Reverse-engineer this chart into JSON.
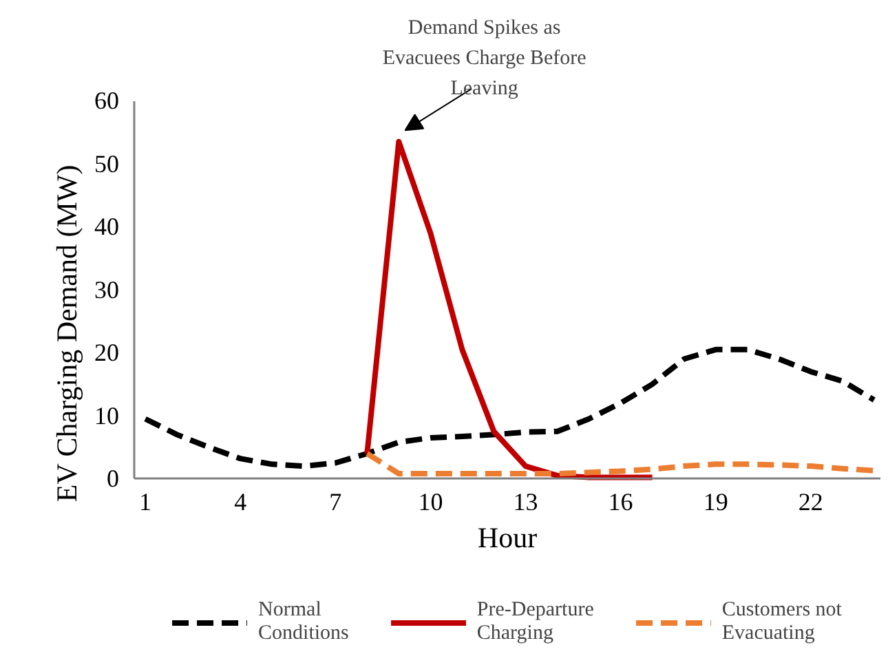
{
  "chart_data": {
    "type": "line",
    "xlabel": "Hour",
    "ylabel": "EV Charging Demand (MW)",
    "xlim": [
      0.65,
      24.2
    ],
    "xticks": [
      1,
      4,
      7,
      10,
      13,
      16,
      19,
      22
    ],
    "ylim": [
      0,
      60
    ],
    "yticks": [
      0,
      10,
      20,
      30,
      40,
      50,
      60
    ],
    "grid": false,
    "legend": "bottom",
    "marker": "none",
    "annotations": [
      {
        "text": "Demand Spikes as Evacuees Charge Before Leaving",
        "x": 9,
        "y": 53.5
      }
    ],
    "series": [
      {
        "name": "Normal Conditions",
        "color": "#000000",
        "line_style": "dashed",
        "x": [
          1,
          2,
          3,
          4,
          5,
          6,
          7,
          8,
          9,
          10,
          11,
          12,
          13,
          14,
          15,
          16,
          17,
          18,
          19,
          20,
          21,
          22,
          23,
          24
        ],
        "values": [
          9.5,
          7,
          5,
          3.2,
          2.3,
          2,
          2.5,
          4,
          5.8,
          6.5,
          6.7,
          7,
          7.4,
          7.5,
          9.5,
          12,
          15,
          19,
          20.5,
          20.5,
          19,
          17,
          15.5,
          12.5
        ]
      },
      {
        "name": "Pre-Departure Charging",
        "color": "#c00000",
        "line_style": "solid",
        "x": [
          8,
          9,
          10,
          11,
          12,
          13,
          14,
          15,
          16,
          17
        ],
        "values": [
          4,
          53.5,
          39,
          20.5,
          7.5,
          2,
          0.5,
          0.2,
          0.2,
          0.2
        ]
      },
      {
        "name": "Customers not Evacuating",
        "color": "#ed7d31",
        "line_style": "dashed",
        "x": [
          8,
          9,
          10,
          11,
          12,
          13,
          14,
          15,
          16,
          17,
          18,
          19,
          20,
          21,
          22,
          23,
          24
        ],
        "values": [
          4,
          0.8,
          0.8,
          0.8,
          0.8,
          0.8,
          0.8,
          1,
          1.2,
          1.5,
          2,
          2.3,
          2.3,
          2.2,
          2,
          1.6,
          1.3
        ]
      }
    ]
  }
}
